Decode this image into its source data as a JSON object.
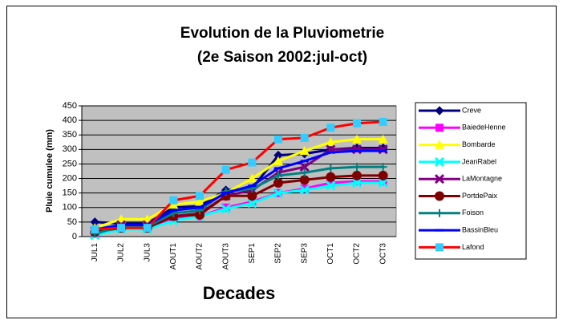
{
  "chart_data": {
    "type": "line",
    "title": "Evolution de la Pluviometrie",
    "subtitle": "(2e Saison 2002:jul-oct)",
    "x_label": "Decades",
    "y_label": "Pluie cumulee (mm)",
    "categories": [
      "JUL1",
      "JUL2",
      "JUL3",
      "AOUT1",
      "AOUT2",
      "AOUT3",
      "SEP1",
      "SEP2",
      "SEP3",
      "OCT1",
      "OCT2",
      "OCT3"
    ],
    "ylim": [
      0,
      450
    ],
    "yticks": [
      0,
      50,
      100,
      150,
      200,
      250,
      300,
      350,
      400,
      450
    ],
    "grid": true,
    "legend": "right",
    "series": [
      {
        "name": "Creve",
        "color": "#000080",
        "marker": "diamond",
        "values": [
          50,
          45,
          45,
          100,
          105,
          160,
          165,
          280,
          285,
          300,
          305,
          305
        ]
      },
      {
        "name": "BaiedeHenne",
        "color": "#ff00ff",
        "marker": "square",
        "values": [
          10,
          30,
          30,
          65,
          70,
          100,
          120,
          150,
          165,
          185,
          190,
          190
        ]
      },
      {
        "name": "Bombarde",
        "color": "#ffff00",
        "marker": "triangle",
        "values": [
          30,
          60,
          60,
          110,
          120,
          150,
          200,
          260,
          295,
          325,
          335,
          335
        ]
      },
      {
        "name": "JeanRabel",
        "color": "#00ffff",
        "marker": "x",
        "values": [
          5,
          25,
          25,
          55,
          70,
          95,
          115,
          150,
          160,
          175,
          185,
          185
        ]
      },
      {
        "name": "LaMontagne",
        "color": "#800080",
        "marker": "x",
        "values": [
          20,
          40,
          40,
          70,
          80,
          140,
          160,
          220,
          240,
          300,
          300,
          300
        ]
      },
      {
        "name": "PortdePaix",
        "color": "#800000",
        "marker": "circle",
        "values": [
          15,
          30,
          30,
          70,
          75,
          140,
          140,
          185,
          195,
          205,
          210,
          210
        ]
      },
      {
        "name": "Foison",
        "color": "#008080",
        "marker": "plus",
        "values": [
          10,
          35,
          35,
          80,
          90,
          155,
          165,
          210,
          220,
          235,
          240,
          240
        ]
      },
      {
        "name": "BassinBleu",
        "color": "#0000ff",
        "marker": "dash",
        "values": [
          25,
          40,
          40,
          90,
          100,
          150,
          175,
          235,
          260,
          290,
          295,
          295
        ]
      },
      {
        "name": "Lafond",
        "color": "#ff0000",
        "marker": "square-light",
        "values": [
          25,
          30,
          30,
          125,
          140,
          230,
          255,
          335,
          340,
          375,
          390,
          395
        ]
      }
    ]
  }
}
